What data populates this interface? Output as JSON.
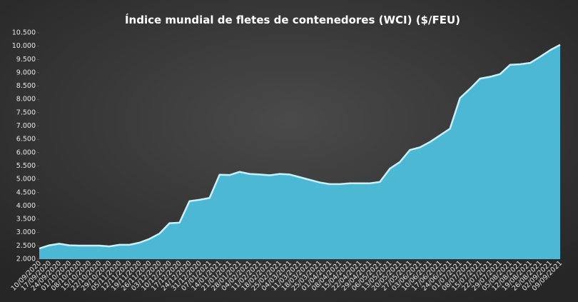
{
  "chart_data": {
    "type": "area",
    "title": "Índice mundial de fletes de contenedores (WCI) ($/FEU)",
    "categories": [
      "10/09/2020",
      "17/09/2020",
      "24/09/2020",
      "01/10/2020",
      "08/10/2020",
      "15/10/2020",
      "22/10/2020",
      "29/10/2020",
      "05/11/2020",
      "12/11/2020",
      "19/11/2020",
      "26/11/2020",
      "03/12/2020",
      "10/12/2020",
      "17/12/2020",
      "24/12/2020",
      "31/12/2020",
      "07/01/2021",
      "14/01/2021",
      "21/01/2021",
      "28/01/2021",
      "04/02/2021",
      "11/02/2021",
      "18/02/2021",
      "25/02/2021",
      "04/03/2021",
      "11/03/2021",
      "18/03/2021",
      "25/03/2021",
      "01/04/2021",
      "08/04/2021",
      "15/04/2021",
      "22/04/2021",
      "29/04/2021",
      "06/05/2021",
      "13/05/2021",
      "20/05/2021",
      "27/05/2021",
      "03/06/2021",
      "10/06/2021",
      "17/06/2021",
      "24/06/2021",
      "01/07/2021",
      "08/07/2021",
      "15/07/2021",
      "22/07/2021",
      "29/07/2021",
      "05/08/2021",
      "12/08/2021",
      "19/08/2021",
      "26/08/2021",
      "02/09/2021",
      "09/09/2021"
    ],
    "values": [
      2400,
      2520,
      2580,
      2520,
      2510,
      2510,
      2510,
      2480,
      2540,
      2540,
      2620,
      2760,
      2960,
      3350,
      3370,
      4180,
      4230,
      4300,
      5170,
      5160,
      5280,
      5200,
      5180,
      5150,
      5200,
      5180,
      5080,
      4980,
      4880,
      4820,
      4820,
      4850,
      4850,
      4850,
      4900,
      5400,
      5650,
      6100,
      6200,
      6400,
      6650,
      6900,
      8050,
      8400,
      8780,
      8850,
      8950,
      9300,
      9320,
      9370,
      9600,
      9850,
      10050
    ],
    "color": "#4db8d4",
    "ylim": [
      2000,
      10500
    ],
    "yticks": [
      {
        "value": 2000,
        "label": "2.000"
      },
      {
        "value": 2500,
        "label": "2.500"
      },
      {
        "value": 3000,
        "label": "3.000"
      },
      {
        "value": 3500,
        "label": "3.500"
      },
      {
        "value": 4000,
        "label": "4.000"
      },
      {
        "value": 4500,
        "label": "4.500"
      },
      {
        "value": 5000,
        "label": "5.000"
      },
      {
        "value": 5500,
        "label": "5.500"
      },
      {
        "value": 6000,
        "label": "6.000"
      },
      {
        "value": 6500,
        "label": "6.500"
      },
      {
        "value": 7000,
        "label": "7.000"
      },
      {
        "value": 7500,
        "label": "7.500"
      },
      {
        "value": 8000,
        "label": "8.000"
      },
      {
        "value": 8500,
        "label": "8.500"
      },
      {
        "value": 9000,
        "label": "9.000"
      },
      {
        "value": 9500,
        "label": "9.500"
      },
      {
        "value": 10000,
        "label": "10.000"
      },
      {
        "value": 10500,
        "label": "10.500"
      }
    ],
    "grid": false
  }
}
